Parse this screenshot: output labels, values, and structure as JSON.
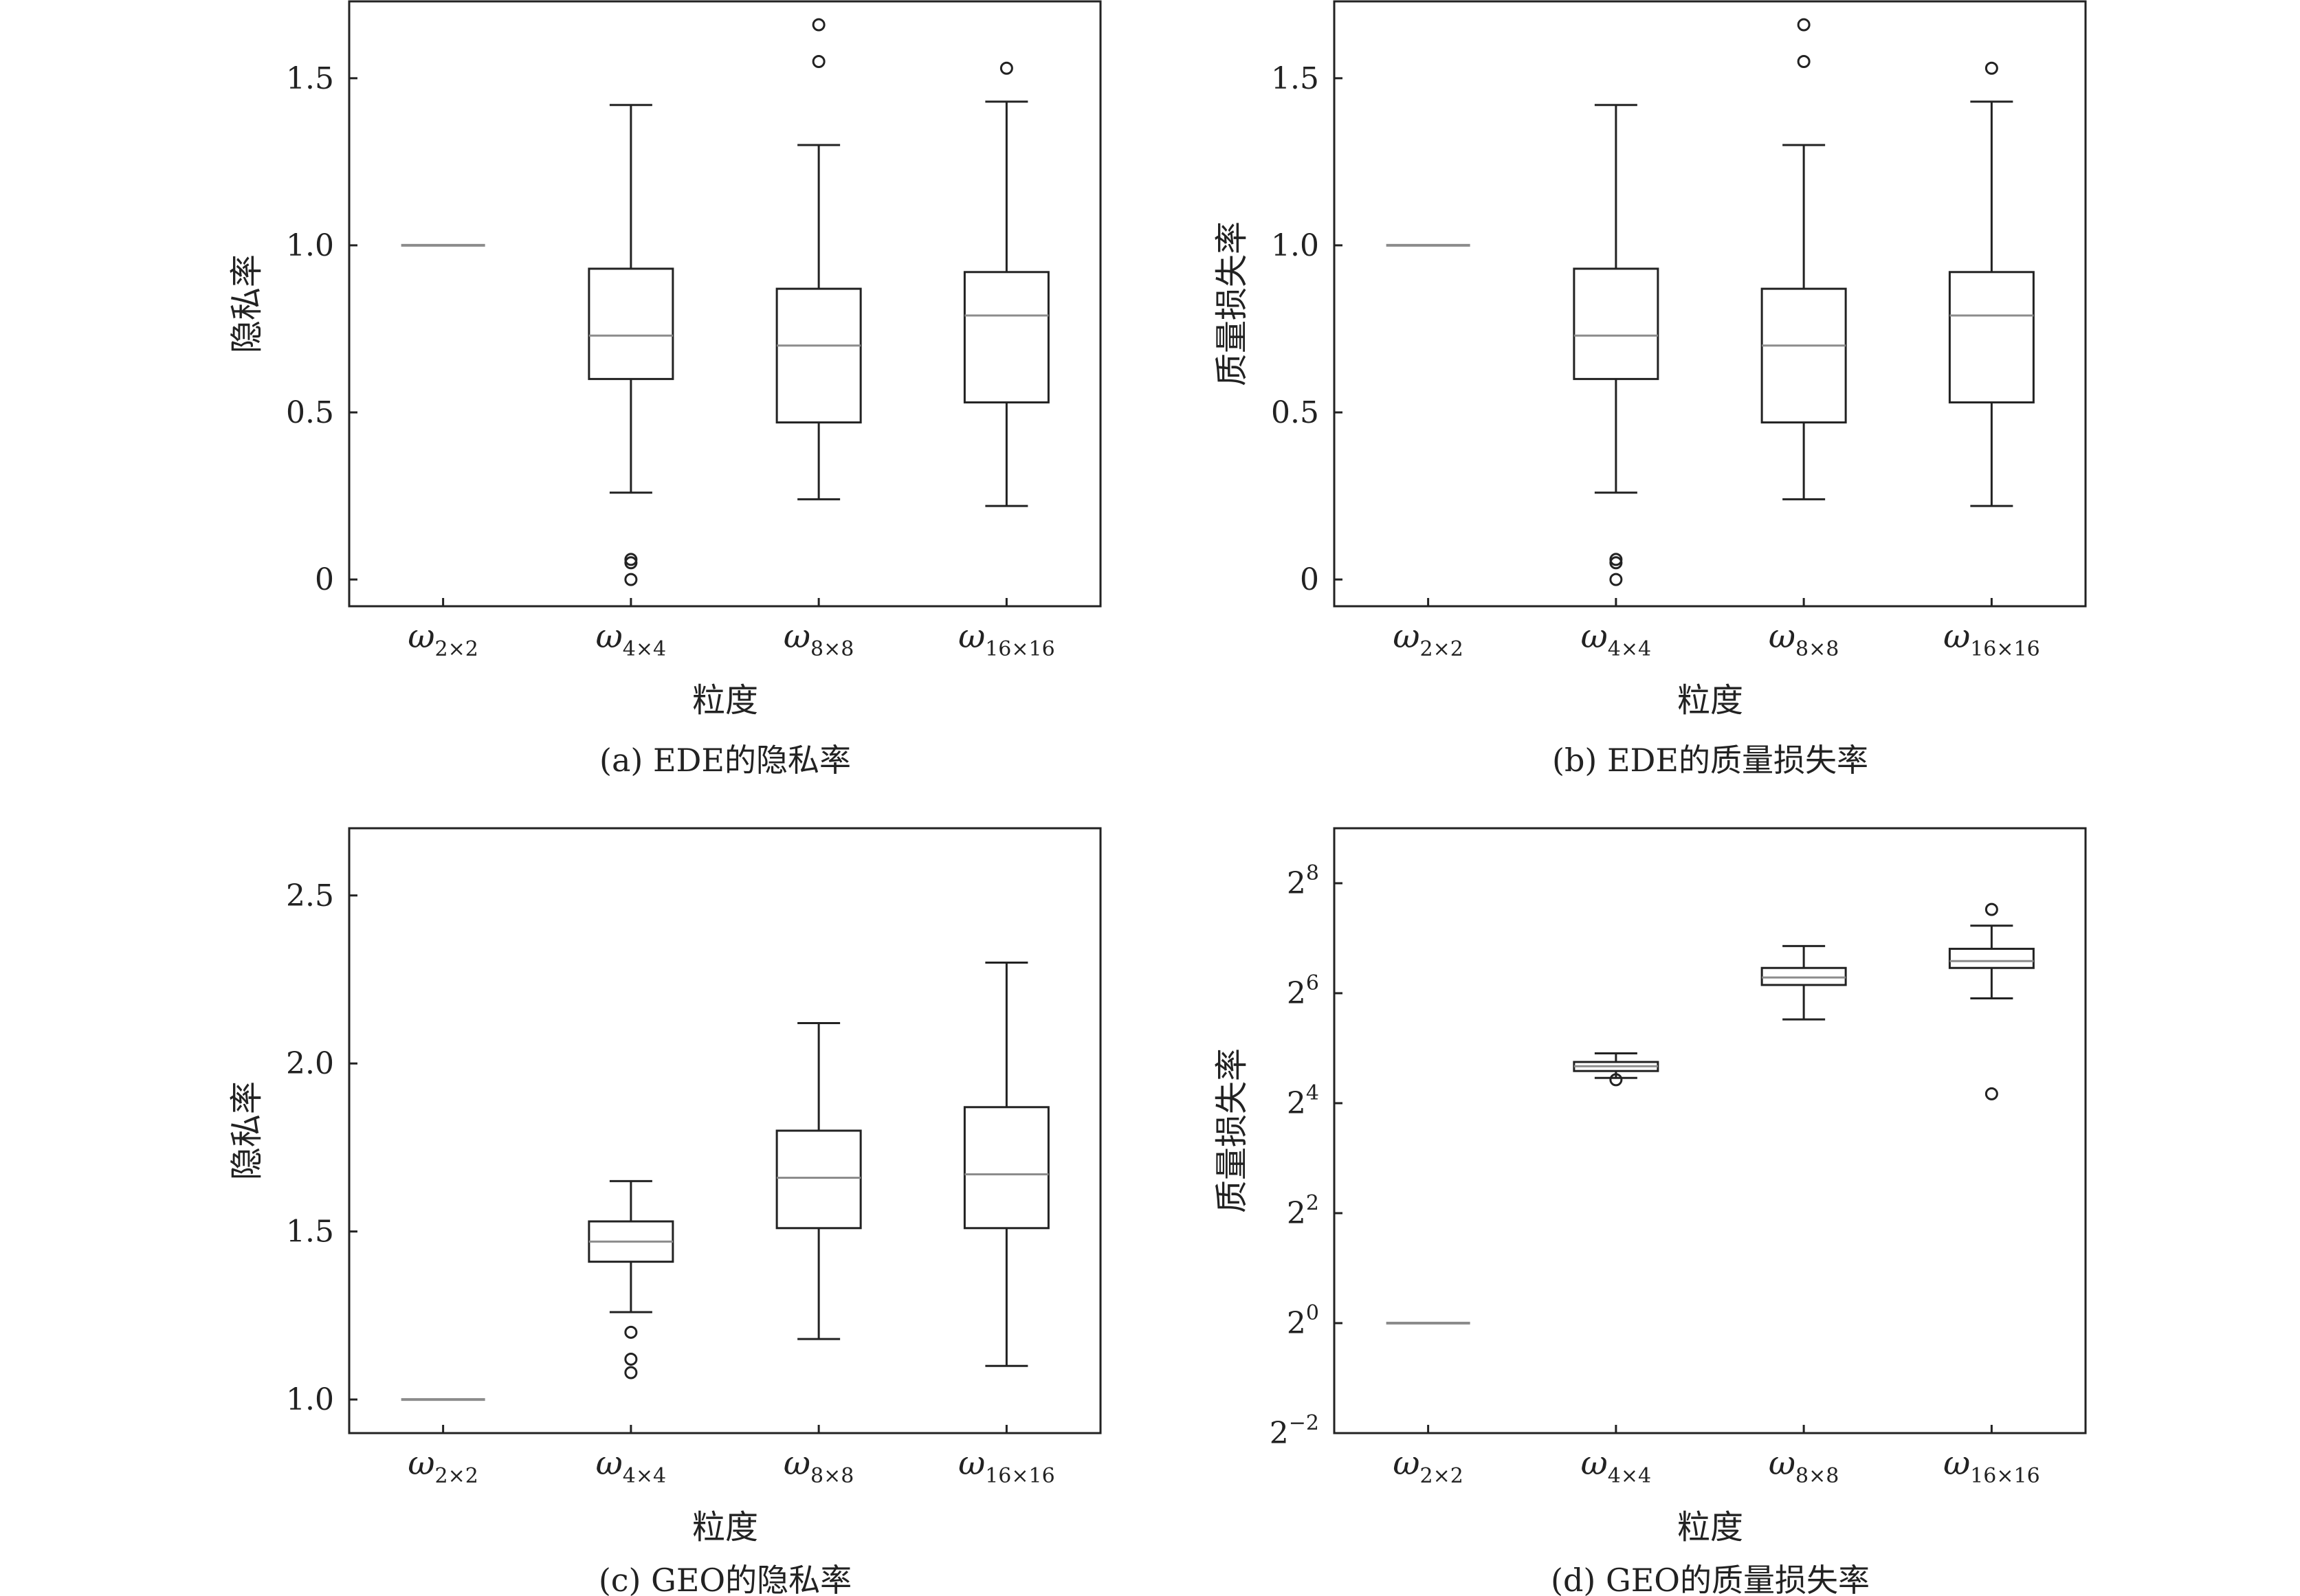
{
  "chart_data": [
    {
      "type": "box",
      "caption": "(a)  EDE的隐私率",
      "xlabel": "粒度",
      "ylabel": "隐私率",
      "ylim": [
        -0.08,
        1.73
      ],
      "yscale": "linear",
      "yticks": [
        {
          "value": 0,
          "label": "0"
        },
        {
          "value": 0.5,
          "label": "0.5"
        },
        {
          "value": 1.0,
          "label": "1.0"
        },
        {
          "value": 1.5,
          "label": "1.5"
        }
      ],
      "categories": [
        {
          "main": "ω",
          "sub": "2×2"
        },
        {
          "main": "ω",
          "sub": "4×4"
        },
        {
          "main": "ω",
          "sub": "8×8"
        },
        {
          "main": "ω",
          "sub": "16×16"
        }
      ],
      "boxes": [
        {
          "whislo": 1.0,
          "q1": 1.0,
          "med": 1.0,
          "q3": 1.0,
          "whishi": 1.0,
          "fliers": []
        },
        {
          "whislo": 0.26,
          "q1": 0.6,
          "med": 0.73,
          "q3": 0.93,
          "whishi": 1.42,
          "fliers": [
            0.0,
            0.05,
            0.06
          ]
        },
        {
          "whislo": 0.24,
          "q1": 0.47,
          "med": 0.7,
          "q3": 0.87,
          "whishi": 1.3,
          "fliers": [
            1.55,
            1.66
          ]
        },
        {
          "whislo": 0.22,
          "q1": 0.53,
          "med": 0.79,
          "q3": 0.92,
          "whishi": 1.43,
          "fliers": [
            1.53
          ]
        }
      ]
    },
    {
      "type": "box",
      "caption": "(b)  EDE的质量损失率",
      "xlabel": "粒度",
      "ylabel": "质量损失率",
      "ylim": [
        -0.08,
        1.73
      ],
      "yscale": "linear",
      "yticks": [
        {
          "value": 0,
          "label": "0"
        },
        {
          "value": 0.5,
          "label": "0.5"
        },
        {
          "value": 1.0,
          "label": "1.0"
        },
        {
          "value": 1.5,
          "label": "1.5"
        }
      ],
      "categories": [
        {
          "main": "ω",
          "sub": "2×2"
        },
        {
          "main": "ω",
          "sub": "4×4"
        },
        {
          "main": "ω",
          "sub": "8×8"
        },
        {
          "main": "ω",
          "sub": "16×16"
        }
      ],
      "boxes": [
        {
          "whislo": 1.0,
          "q1": 1.0,
          "med": 1.0,
          "q3": 1.0,
          "whishi": 1.0,
          "fliers": []
        },
        {
          "whislo": 0.26,
          "q1": 0.6,
          "med": 0.73,
          "q3": 0.93,
          "whishi": 1.42,
          "fliers": [
            0.0,
            0.05,
            0.06
          ]
        },
        {
          "whislo": 0.24,
          "q1": 0.47,
          "med": 0.7,
          "q3": 0.87,
          "whishi": 1.3,
          "fliers": [
            1.55,
            1.66
          ]
        },
        {
          "whislo": 0.22,
          "q1": 0.53,
          "med": 0.79,
          "q3": 0.92,
          "whishi": 1.43,
          "fliers": [
            1.53
          ]
        }
      ]
    },
    {
      "type": "box",
      "caption": "(c)  GEO的隐私率",
      "xlabel": "粒度",
      "ylabel": "隐私率",
      "ylim": [
        0.9,
        2.7
      ],
      "yscale": "linear",
      "yticks": [
        {
          "value": 1.0,
          "label": "1.0"
        },
        {
          "value": 1.5,
          "label": "1.5"
        },
        {
          "value": 2.0,
          "label": "2.0"
        },
        {
          "value": 2.5,
          "label": "2.5"
        }
      ],
      "categories": [
        {
          "main": "ω",
          "sub": "2×2"
        },
        {
          "main": "ω",
          "sub": "4×4"
        },
        {
          "main": "ω",
          "sub": "8×8"
        },
        {
          "main": "ω",
          "sub": "16×16"
        }
      ],
      "boxes": [
        {
          "whislo": 1.0,
          "q1": 1.0,
          "med": 1.0,
          "q3": 1.0,
          "whishi": 1.0,
          "fliers": []
        },
        {
          "whislo": 1.26,
          "q1": 1.41,
          "med": 1.47,
          "q3": 1.53,
          "whishi": 1.65,
          "fliers": [
            1.08,
            1.12,
            1.2
          ]
        },
        {
          "whislo": 1.18,
          "q1": 1.51,
          "med": 1.66,
          "q3": 1.8,
          "whishi": 2.12,
          "fliers": []
        },
        {
          "whislo": 1.1,
          "q1": 1.51,
          "med": 1.67,
          "q3": 1.87,
          "whishi": 2.3,
          "fliers": []
        }
      ]
    },
    {
      "type": "box",
      "caption": "(d)  GEO的质量损失率",
      "xlabel": "粒度",
      "ylabel": "质量损失率",
      "ylim": [
        0.25,
        512
      ],
      "yscale": "log2",
      "yticks": [
        {
          "value": 0.25,
          "base": "2",
          "exp": "−2"
        },
        {
          "value": 1,
          "base": "2",
          "exp": "0"
        },
        {
          "value": 4,
          "base": "2",
          "exp": "2"
        },
        {
          "value": 16,
          "base": "2",
          "exp": "4"
        },
        {
          "value": 64,
          "base": "2",
          "exp": "6"
        },
        {
          "value": 256,
          "base": "2",
          "exp": "8"
        }
      ],
      "categories": [
        {
          "main": "ω",
          "sub": "2×2"
        },
        {
          "main": "ω",
          "sub": "4×4"
        },
        {
          "main": "ω",
          "sub": "8×8"
        },
        {
          "main": "ω",
          "sub": "16×16"
        }
      ],
      "boxes": [
        {
          "whislo": 1.0,
          "q1": 1.0,
          "med": 1.0,
          "q3": 1.0,
          "whishi": 1.0,
          "fliers": []
        },
        {
          "whislo": 22.0,
          "q1": 24.0,
          "med": 25.5,
          "q3": 26.9,
          "whishi": 30.0,
          "fliers": [
            21.5
          ]
        },
        {
          "whislo": 46.0,
          "q1": 71.0,
          "med": 78.0,
          "q3": 88.0,
          "whishi": 116.0,
          "fliers": []
        },
        {
          "whislo": 60.0,
          "q1": 88.0,
          "med": 96.0,
          "q3": 112.0,
          "whishi": 150.0,
          "fliers": [
            18.0,
            184.0
          ]
        }
      ]
    }
  ]
}
